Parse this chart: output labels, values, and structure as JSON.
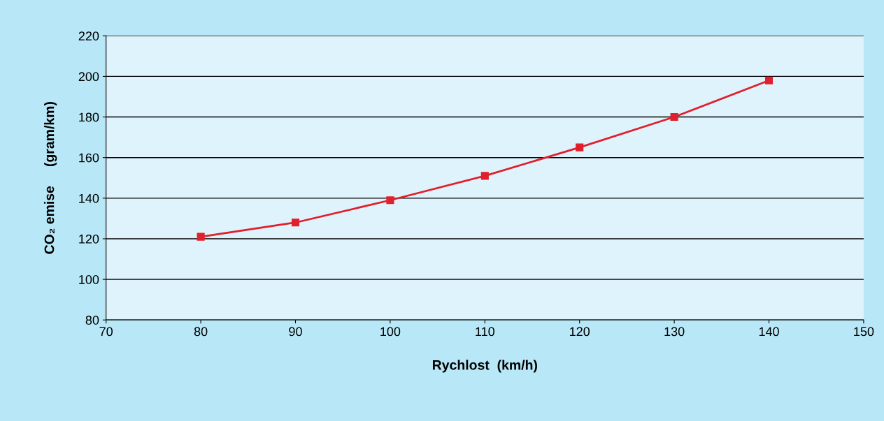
{
  "chart_data": {
    "type": "line",
    "xlabel": "Rychlost  (km/h)",
    "ylabel": "CO₂ emise     (gram/km)",
    "x": [
      80,
      90,
      100,
      110,
      120,
      130,
      140
    ],
    "series": [
      {
        "color": "#e0202c",
        "values": [
          121,
          128,
          139,
          151,
          165,
          180,
          198
        ]
      }
    ],
    "xlim": [
      70,
      150
    ],
    "xticks": [
      70,
      80,
      90,
      100,
      110,
      120,
      130,
      140,
      150
    ],
    "ylim": [
      80,
      220
    ],
    "yticks": [
      80,
      100,
      120,
      140,
      160,
      180,
      200,
      220
    ],
    "grid": "y",
    "marker": "square",
    "line_style": "solid"
  }
}
